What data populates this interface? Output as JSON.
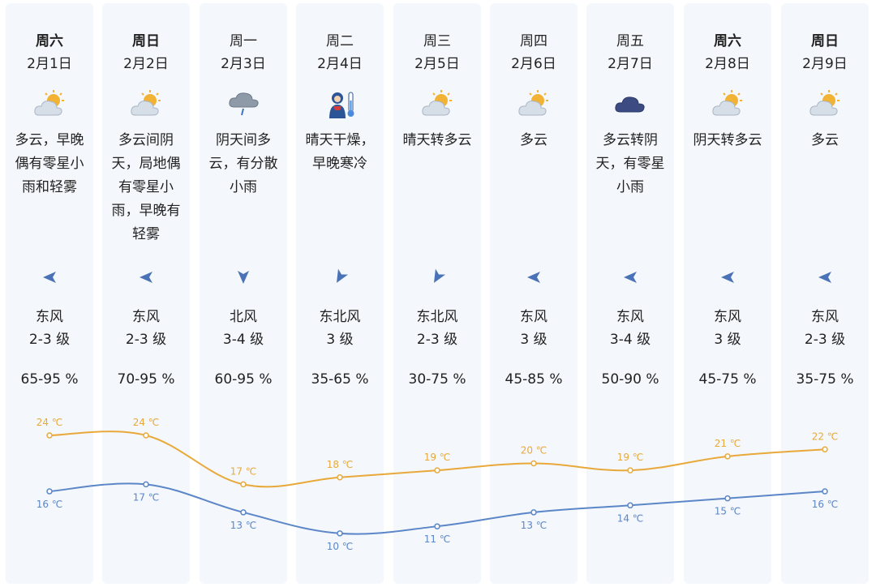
{
  "colors": {
    "high": "#e8a93a",
    "low": "#5b86c8",
    "arrow": "#4a72b6",
    "column_bg": "#f4f7fb"
  },
  "days": [
    {
      "weekday": "周六",
      "bold": true,
      "date": "2月1日",
      "icon": "partly-cloudy-icon",
      "desc": "多云，早晚偶有零星小雨和轻雾",
      "wind_dir": "东风",
      "wind_level": "2-3 级",
      "arrow": "west-arrow-icon",
      "humidity": "65-95 %",
      "high_label": "24 ℃",
      "low_label": "16 ℃"
    },
    {
      "weekday": "周日",
      "bold": true,
      "date": "2月2日",
      "icon": "partly-cloudy-icon",
      "desc": "多云间阴天，局地偶有零星小雨，早晚有轻雾",
      "wind_dir": "东风",
      "wind_level": "2-3 级",
      "arrow": "west-arrow-icon",
      "humidity": "70-95 %",
      "high_label": "24 ℃",
      "low_label": "17 ℃"
    },
    {
      "weekday": "周一",
      "bold": false,
      "date": "2月3日",
      "icon": "rain-cloud-icon",
      "desc": "阴天间多云，有分散小雨",
      "wind_dir": "北风",
      "wind_level": "3-4 级",
      "arrow": "south-arrow-icon",
      "humidity": "60-95 %",
      "high_label": "17 ℃",
      "low_label": "13 ℃"
    },
    {
      "weekday": "周二",
      "bold": false,
      "date": "2月4日",
      "icon": "cold-person-icon",
      "desc": "晴天干燥，早晚寒冷",
      "wind_dir": "东北风",
      "wind_level": "3 级",
      "arrow": "southwest-arrow-icon",
      "humidity": "35-65 %",
      "high_label": "18 ℃",
      "low_label": "10 ℃"
    },
    {
      "weekday": "周三",
      "bold": false,
      "date": "2月5日",
      "icon": "partly-cloudy-icon",
      "desc": "晴天转多云",
      "wind_dir": "东北风",
      "wind_level": "2-3 级",
      "arrow": "southwest-arrow-icon",
      "humidity": "30-75 %",
      "high_label": "19 ℃",
      "low_label": "11 ℃"
    },
    {
      "weekday": "周四",
      "bold": false,
      "date": "2月6日",
      "icon": "partly-cloudy-icon",
      "desc": "多云",
      "wind_dir": "东风",
      "wind_level": "3 级",
      "arrow": "west-arrow-icon",
      "humidity": "45-85 %",
      "high_label": "20 ℃",
      "low_label": "13 ℃"
    },
    {
      "weekday": "周五",
      "bold": false,
      "date": "2月7日",
      "icon": "dark-cloud-icon",
      "desc": "多云转阴天，有零星小雨",
      "wind_dir": "东风",
      "wind_level": "3-4 级",
      "arrow": "west-arrow-icon",
      "humidity": "50-90 %",
      "high_label": "19 ℃",
      "low_label": "14 ℃"
    },
    {
      "weekday": "周六",
      "bold": true,
      "date": "2月8日",
      "icon": "partly-cloudy-icon",
      "desc": "阴天转多云",
      "wind_dir": "东风",
      "wind_level": "3 级",
      "arrow": "west-arrow-icon",
      "humidity": "45-75 %",
      "high_label": "21 ℃",
      "low_label": "15 ℃"
    },
    {
      "weekday": "周日",
      "bold": true,
      "date": "2月9日",
      "icon": "partly-cloudy-icon",
      "desc": "多云",
      "wind_dir": "东风",
      "wind_level": "2-3 级",
      "arrow": "west-arrow-icon",
      "humidity": "35-75 %",
      "high_label": "22 ℃",
      "low_label": "16 ℃"
    }
  ],
  "chart_data": {
    "type": "line",
    "categories": [
      "2月1日",
      "2月2日",
      "2月3日",
      "2月4日",
      "2月5日",
      "2月6日",
      "2月7日",
      "2月8日",
      "2月9日"
    ],
    "series": [
      {
        "values": [
          24,
          24,
          17,
          18,
          19,
          20,
          19,
          21,
          22
        ]
      },
      {
        "values": [
          16,
          17,
          13,
          10,
          11,
          13,
          14,
          15,
          16
        ]
      }
    ],
    "ylim": [
      10,
      24
    ],
    "grid": false
  }
}
